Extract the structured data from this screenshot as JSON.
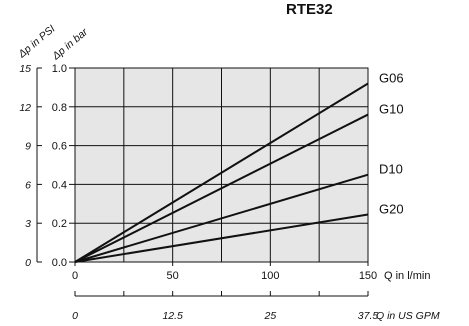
{
  "chart_data": {
    "type": "line",
    "title": "RTE32",
    "x": [
      0,
      150
    ],
    "xlabel": "Q in l/min",
    "xlim": [
      0,
      150
    ],
    "xticks": [
      "0",
      "50",
      "100",
      "150"
    ],
    "x2label": "Q in US GPM",
    "x2ticks": [
      "0",
      "12.5",
      "25",
      "37.5"
    ],
    "ylabel": "Δp in bar",
    "ylim": [
      0,
      1.0
    ],
    "yticks": [
      "0.0",
      "0.2",
      "0.4",
      "0.6",
      "0.8",
      "1.0"
    ],
    "y2label": "Δp in PSI",
    "y2ticks": [
      "0",
      "3",
      "6",
      "9",
      "12",
      "15"
    ],
    "grid": true,
    "series": [
      {
        "name": "G06",
        "values": [
          0,
          0.92
        ]
      },
      {
        "name": "G10",
        "values": [
          0,
          0.76
        ]
      },
      {
        "name": "D10",
        "values": [
          0,
          0.45
        ]
      },
      {
        "name": "G20",
        "values": [
          0,
          0.245
        ]
      }
    ]
  }
}
